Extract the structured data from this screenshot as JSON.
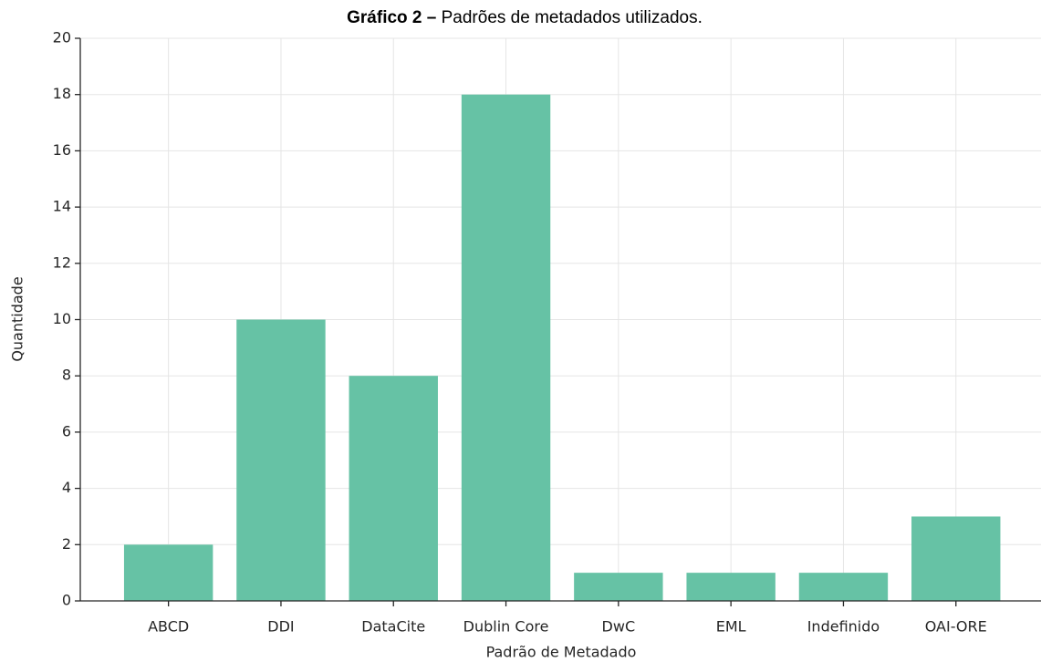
{
  "chart_data": {
    "type": "bar",
    "title_label": "Gráfico 2 –",
    "title": "Padrões de metadados utilizados.",
    "x_label": "Padrão de Metadado",
    "y_label": "Quantidade",
    "categories": [
      "ABCD",
      "DDI",
      "DataCite",
      "Dublin Core",
      "DwC",
      "EML",
      "Indefinido",
      "OAI-ORE"
    ],
    "values": [
      2,
      10,
      8,
      18,
      1,
      1,
      1,
      3
    ],
    "color": "#66c2a5",
    "ylim": [
      0,
      20
    ],
    "yticks": [
      0,
      2,
      4,
      6,
      8,
      10,
      12,
      14,
      16,
      18,
      20
    ],
    "grid": true
  }
}
